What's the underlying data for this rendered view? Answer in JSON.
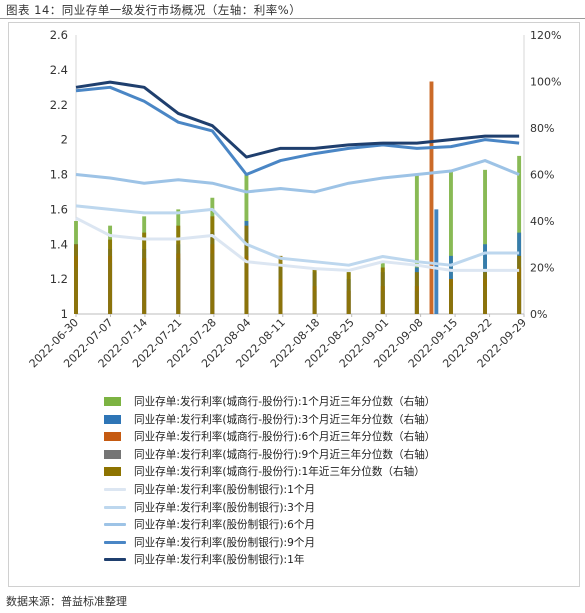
{
  "title": "图表 14：同业存单一级发行市场概况（左轴：利率%）",
  "source": "数据来源：普益标准整理",
  "chart_data": {
    "type": "bar+line",
    "title": "同业存单一级发行市场概况（左轴：利率%）",
    "y_left": {
      "ylim": [
        1,
        2.6
      ],
      "ticks": [
        "1",
        "1.2",
        "1.4",
        "1.6",
        "1.8",
        "2",
        "2.2",
        "2.4",
        "2.6"
      ]
    },
    "y_right": {
      "ylim": [
        0,
        120
      ],
      "ticks": [
        "0%",
        "20%",
        "40%",
        "60%",
        "80%",
        "100%",
        "120%"
      ]
    },
    "x_ticks": [
      "2022-06-30",
      "2022-07-07",
      "2022-07-14",
      "2022-07-21",
      "2022-07-28",
      "2022-08-04",
      "2022-08-11",
      "2022-08-18",
      "2022-08-25",
      "2022-09-01",
      "2022-09-08",
      "2022-09-15",
      "2022-09-22",
      "2022-09-29"
    ],
    "x_start": "2022-06-30",
    "x_end": "2022-09-30",
    "bar_series": [
      {
        "name": "同业存单:发行利率(城商行-股份行):1个月近三年分位数（右轴）",
        "color": "#7cb342",
        "values": [
          [
            0,
            40
          ],
          [
            7,
            38
          ],
          [
            14,
            42
          ],
          [
            21,
            45
          ],
          [
            28,
            50
          ],
          [
            35,
            60
          ],
          [
            42,
            22
          ],
          [
            49,
            20
          ],
          [
            56,
            18
          ],
          [
            63,
            22
          ],
          [
            70,
            60
          ],
          [
            77,
            62
          ],
          [
            84,
            62
          ],
          [
            91,
            68
          ]
        ]
      },
      {
        "name": "同业存单:发行利率(城商行-股份行):3个月近三年分位数（右轴）",
        "color": "#2e75b6",
        "values": [
          [
            0,
            30
          ],
          [
            7,
            28
          ],
          [
            14,
            28
          ],
          [
            21,
            30
          ],
          [
            28,
            35
          ],
          [
            35,
            40
          ],
          [
            42,
            20
          ],
          [
            49,
            18
          ],
          [
            56,
            15
          ],
          [
            63,
            18
          ],
          [
            70,
            20
          ],
          [
            74,
            45
          ],
          [
            77,
            25
          ],
          [
            84,
            30
          ],
          [
            91,
            35
          ]
        ]
      },
      {
        "name": "同业存单:发行利率(城商行-股份行):6个月近三年分位数（右轴）",
        "color": "#c55a11",
        "values": [
          [
            0,
            25
          ],
          [
            7,
            25
          ],
          [
            14,
            24
          ],
          [
            21,
            26
          ],
          [
            28,
            30
          ],
          [
            35,
            25
          ],
          [
            42,
            15
          ],
          [
            49,
            12
          ],
          [
            56,
            10
          ],
          [
            63,
            12
          ],
          [
            70,
            12
          ],
          [
            73,
            100
          ],
          [
            77,
            15
          ],
          [
            84,
            15
          ],
          [
            91,
            20
          ]
        ]
      },
      {
        "name": "同业存单:发行利率(城商行-股份行):9个月近三年分位数（右轴）",
        "color": "#757575",
        "values": [
          [
            0,
            20
          ],
          [
            7,
            22
          ],
          [
            14,
            22
          ],
          [
            21,
            24
          ],
          [
            28,
            26
          ],
          [
            35,
            22
          ],
          [
            42,
            12
          ],
          [
            49,
            10
          ],
          [
            56,
            10
          ],
          [
            63,
            10
          ],
          [
            70,
            10
          ],
          [
            77,
            12
          ],
          [
            84,
            12
          ],
          [
            91,
            15
          ]
        ]
      },
      {
        "name": "同业存单:发行利率(城商行-股份行):1年近三年分位数（右轴）",
        "color": "#8d7300",
        "values": [
          [
            0,
            30
          ],
          [
            7,
            32
          ],
          [
            14,
            35
          ],
          [
            21,
            38
          ],
          [
            28,
            42
          ],
          [
            35,
            38
          ],
          [
            42,
            25
          ],
          [
            49,
            20
          ],
          [
            56,
            18
          ],
          [
            63,
            20
          ],
          [
            70,
            18
          ],
          [
            77,
            15
          ],
          [
            84,
            18
          ],
          [
            91,
            25
          ]
        ]
      }
    ],
    "line_series": [
      {
        "name": "同业存单:发行利率(股份制银行):1个月",
        "color": "#dce6f2",
        "points": [
          [
            0,
            1.55
          ],
          [
            7,
            1.45
          ],
          [
            14,
            1.43
          ],
          [
            21,
            1.43
          ],
          [
            28,
            1.45
          ],
          [
            35,
            1.3
          ],
          [
            42,
            1.28
          ],
          [
            49,
            1.26
          ],
          [
            56,
            1.25
          ],
          [
            63,
            1.3
          ],
          [
            70,
            1.28
          ],
          [
            77,
            1.25
          ],
          [
            84,
            1.25
          ],
          [
            91,
            1.25
          ]
        ]
      },
      {
        "name": "同业存单:发行利率(股份制银行):3个月",
        "color": "#bdd7ee",
        "points": [
          [
            0,
            1.62
          ],
          [
            7,
            1.6
          ],
          [
            14,
            1.58
          ],
          [
            21,
            1.58
          ],
          [
            28,
            1.6
          ],
          [
            35,
            1.4
          ],
          [
            42,
            1.32
          ],
          [
            49,
            1.3
          ],
          [
            56,
            1.28
          ],
          [
            63,
            1.33
          ],
          [
            70,
            1.3
          ],
          [
            77,
            1.28
          ],
          [
            84,
            1.35
          ],
          [
            91,
            1.35
          ]
        ]
      },
      {
        "name": "同业存单:发行利率(股份制银行):6个月",
        "color": "#9dc3e6",
        "points": [
          [
            0,
            1.8
          ],
          [
            7,
            1.78
          ],
          [
            14,
            1.75
          ],
          [
            21,
            1.77
          ],
          [
            28,
            1.75
          ],
          [
            35,
            1.7
          ],
          [
            42,
            1.72
          ],
          [
            49,
            1.7
          ],
          [
            56,
            1.75
          ],
          [
            63,
            1.78
          ],
          [
            70,
            1.8
          ],
          [
            77,
            1.82
          ],
          [
            84,
            1.88
          ],
          [
            91,
            1.8
          ]
        ]
      },
      {
        "name": "同业存单:发行利率(股份制银行):9个月",
        "color": "#4a86c5",
        "points": [
          [
            0,
            2.28
          ],
          [
            7,
            2.3
          ],
          [
            14,
            2.22
          ],
          [
            21,
            2.1
          ],
          [
            28,
            2.05
          ],
          [
            35,
            1.8
          ],
          [
            42,
            1.88
          ],
          [
            49,
            1.92
          ],
          [
            56,
            1.95
          ],
          [
            63,
            1.97
          ],
          [
            70,
            1.95
          ],
          [
            77,
            1.96
          ],
          [
            84,
            2.0
          ],
          [
            91,
            1.98
          ]
        ]
      },
      {
        "name": "同业存单:发行利率(股份制银行):1年",
        "color": "#1f3f6e",
        "points": [
          [
            0,
            2.3
          ],
          [
            7,
            2.33
          ],
          [
            14,
            2.3
          ],
          [
            21,
            2.15
          ],
          [
            28,
            2.08
          ],
          [
            35,
            1.9
          ],
          [
            42,
            1.95
          ],
          [
            49,
            1.95
          ],
          [
            56,
            1.97
          ],
          [
            63,
            1.98
          ],
          [
            70,
            1.98
          ],
          [
            77,
            2.0
          ],
          [
            84,
            2.02
          ],
          [
            91,
            2.02
          ]
        ]
      }
    ]
  },
  "colors": {
    "axis": "#bdbdbd",
    "tick_text": "#333333"
  }
}
